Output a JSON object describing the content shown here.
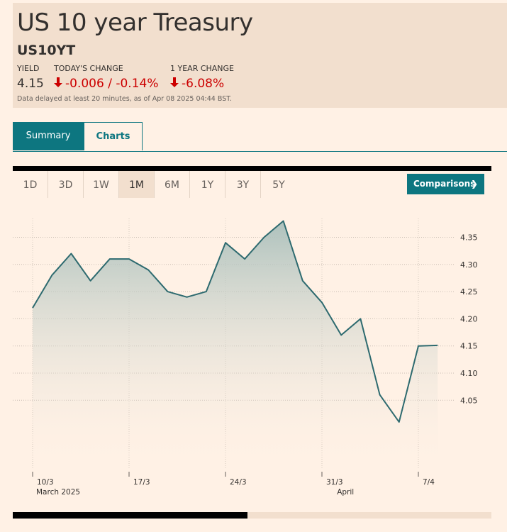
{
  "header": {
    "title": "US 10 year Treasury",
    "symbol": "US10YT",
    "yield_label": "YIELD",
    "yield_value": "4.15",
    "todays_change_label": "TODAY'S CHANGE",
    "todays_change_value": "-0.006 / -0.14%",
    "year_change_label": "1 YEAR CHANGE",
    "year_change_value": "-6.08%",
    "note": "Data delayed at least 20 minutes, as of Apr 08 2025 04:44 BST."
  },
  "tabs": [
    {
      "label": "Summary",
      "active": true
    },
    {
      "label": "Charts",
      "active": false
    }
  ],
  "ranges": [
    {
      "label": "1D"
    },
    {
      "label": "3D"
    },
    {
      "label": "1W"
    },
    {
      "label": "1M",
      "active": true
    },
    {
      "label": "6M"
    },
    {
      "label": "1Y"
    },
    {
      "label": "3Y"
    },
    {
      "label": "5Y"
    }
  ],
  "comparisons_label": "Comparisons",
  "colors": {
    "accent": "#0d7680",
    "negative": "#cc0000",
    "line": "#2d6a6f",
    "background": "#fff1e5"
  },
  "chart_data": {
    "type": "area",
    "title": "",
    "xlabel": "",
    "ylabel": "",
    "x": [
      "10/3",
      "11/3",
      "12/3",
      "13/3",
      "14/3",
      "17/3",
      "18/3",
      "19/3",
      "20/3",
      "21/3",
      "24/3",
      "25/3",
      "26/3",
      "27/3",
      "28/3",
      "31/3",
      "1/4",
      "2/4",
      "3/4",
      "4/4",
      "7/4",
      "8/4"
    ],
    "series": [
      {
        "values": [
          4.22,
          4.28,
          4.32,
          4.27,
          4.31,
          4.31,
          4.29,
          4.25,
          4.24,
          4.25,
          4.34,
          4.31,
          4.35,
          4.38,
          4.27,
          4.23,
          4.17,
          4.2,
          4.06,
          4.01,
          4.15,
          4.151
        ]
      }
    ],
    "ylim": [
      3.85,
      4.4
    ],
    "yticks": [
      "4.35",
      "4.30",
      "4.25",
      "4.20",
      "4.15",
      "4.10",
      "4.05"
    ],
    "ytick_values": [
      4.35,
      4.3,
      4.25,
      4.2,
      4.15,
      4.1,
      4.05
    ],
    "xtick_labels": [
      {
        "label": "10/3",
        "index": 0
      },
      {
        "label": "17/3",
        "index": 5
      },
      {
        "label": "24/3",
        "index": 10
      },
      {
        "label": "31/3",
        "index": 15
      },
      {
        "label": "7/4",
        "index": 20
      }
    ],
    "month_labels": [
      {
        "label": "March 2025",
        "index": 0
      },
      {
        "label": "April",
        "index": 16
      }
    ],
    "grid": true
  }
}
